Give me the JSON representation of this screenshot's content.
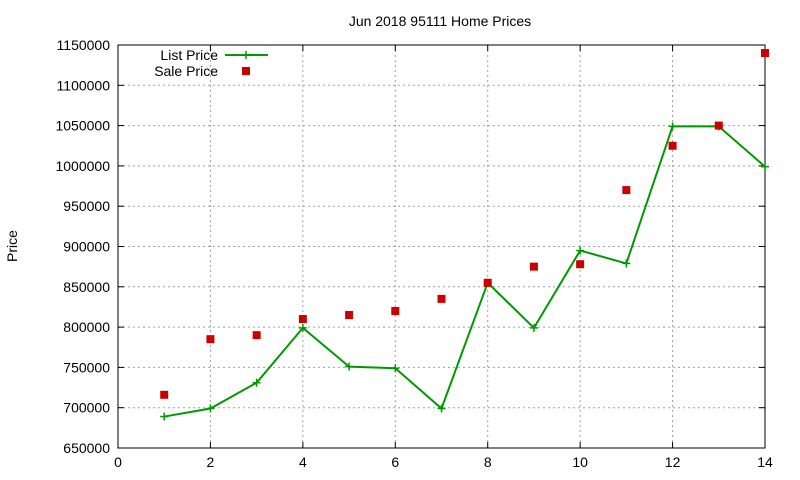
{
  "chart_data": {
    "type": "line",
    "title": "Jun 2018 95111 Home Prices",
    "xlabel": "",
    "ylabel": "Price",
    "xlim": [
      0,
      14
    ],
    "ylim": [
      650000,
      1150000
    ],
    "x_ticks": [
      0,
      2,
      4,
      6,
      8,
      10,
      12,
      14
    ],
    "y_ticks": [
      650000,
      700000,
      750000,
      800000,
      850000,
      900000,
      950000,
      1000000,
      1050000,
      1100000,
      1150000
    ],
    "grid": true,
    "legend_position": "top-left",
    "series": [
      {
        "name": "List Price",
        "style": "line-with-plus-markers",
        "color": "#009900",
        "x": [
          1,
          2,
          3,
          4,
          5,
          6,
          7,
          8,
          9,
          10,
          11,
          12,
          13,
          14
        ],
        "y": [
          689000,
          699000,
          731000,
          799000,
          751000,
          749000,
          699000,
          855000,
          799000,
          895000,
          879000,
          1049000,
          1049000,
          999000
        ]
      },
      {
        "name": "Sale Price",
        "style": "square-markers",
        "color": "#cc0000",
        "x": [
          1,
          2,
          3,
          4,
          5,
          6,
          7,
          8,
          9,
          10,
          11,
          12,
          13,
          14
        ],
        "y": [
          716000,
          785000,
          790000,
          810000,
          815000,
          820000,
          835000,
          855000,
          875000,
          878000,
          970000,
          1025000,
          1050000,
          1140000
        ]
      }
    ]
  }
}
